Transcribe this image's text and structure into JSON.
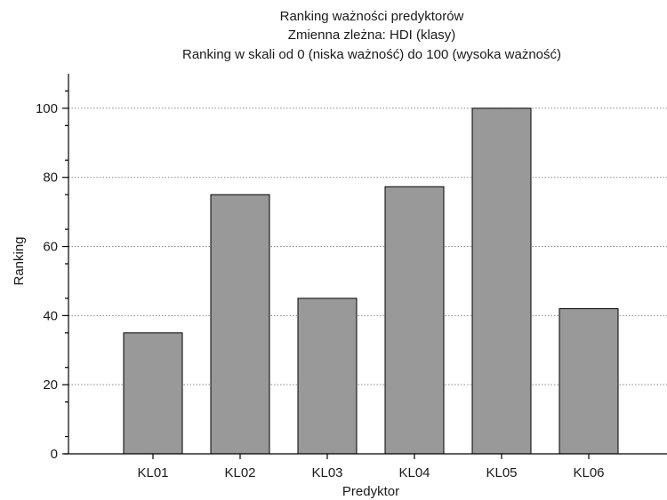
{
  "chart_data": {
    "type": "bar",
    "title_lines": [
      "Ranking ważności predyktorów",
      "Zmienna zleżna: HDI (klasy)",
      "Ranking w skali od 0 (niska ważność) do 100 (wysoka ważność)"
    ],
    "xlabel": "Predyktor",
    "ylabel": "Ranking",
    "categories": [
      "KL01",
      "KL02",
      "KL03",
      "KL04",
      "KL05",
      "KL06"
    ],
    "values": [
      35,
      75,
      45,
      77.3,
      100,
      42
    ],
    "ylim": [
      0,
      110
    ],
    "yticks": [
      "0",
      "20",
      "40",
      "60",
      "80",
      "100"
    ],
    "grid": "horizontal dotted",
    "bar_color": "#999999"
  }
}
